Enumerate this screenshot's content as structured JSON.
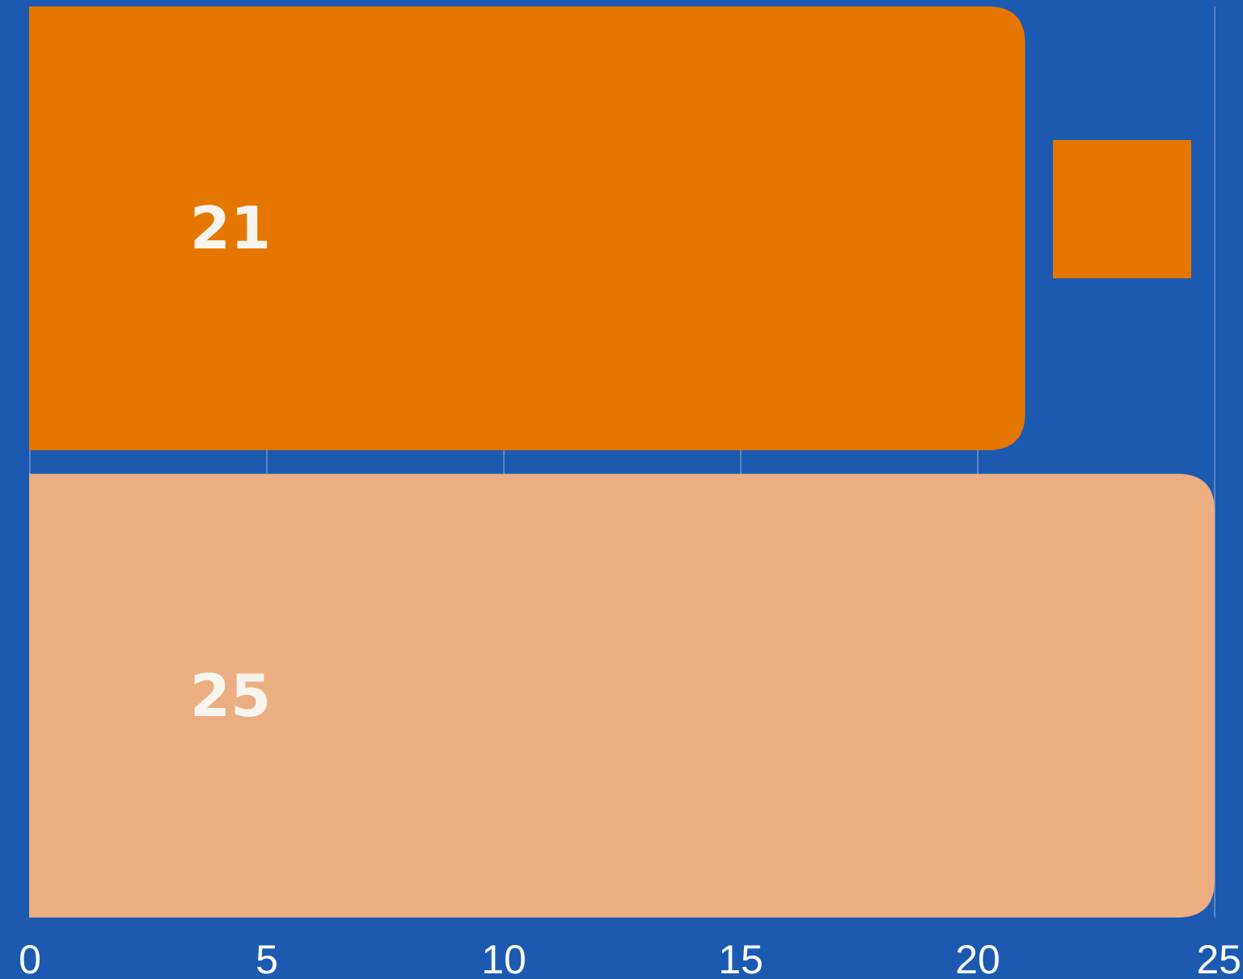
{
  "chart_data": {
    "type": "bar",
    "orientation": "horizontal",
    "title": "",
    "xlabel": "",
    "ylabel": "",
    "xlim": [
      0,
      25
    ],
    "xticks": [
      "0",
      "5",
      "10",
      "15",
      "20",
      "25"
    ],
    "grid": "vertical",
    "legend": "top-right",
    "categories": [
      "",
      ""
    ],
    "values": [
      21,
      25
    ],
    "value_labels": [
      "21",
      "25"
    ],
    "bar_colors": [
      "#e57700",
      "#ecae81"
    ],
    "legend_colors": [
      "#e57700"
    ],
    "background_color": "#1b5ab0",
    "grid_color": "#5b84c4",
    "tick_label_color": "#ffffff",
    "data_label_color": "#f7f4ee"
  }
}
